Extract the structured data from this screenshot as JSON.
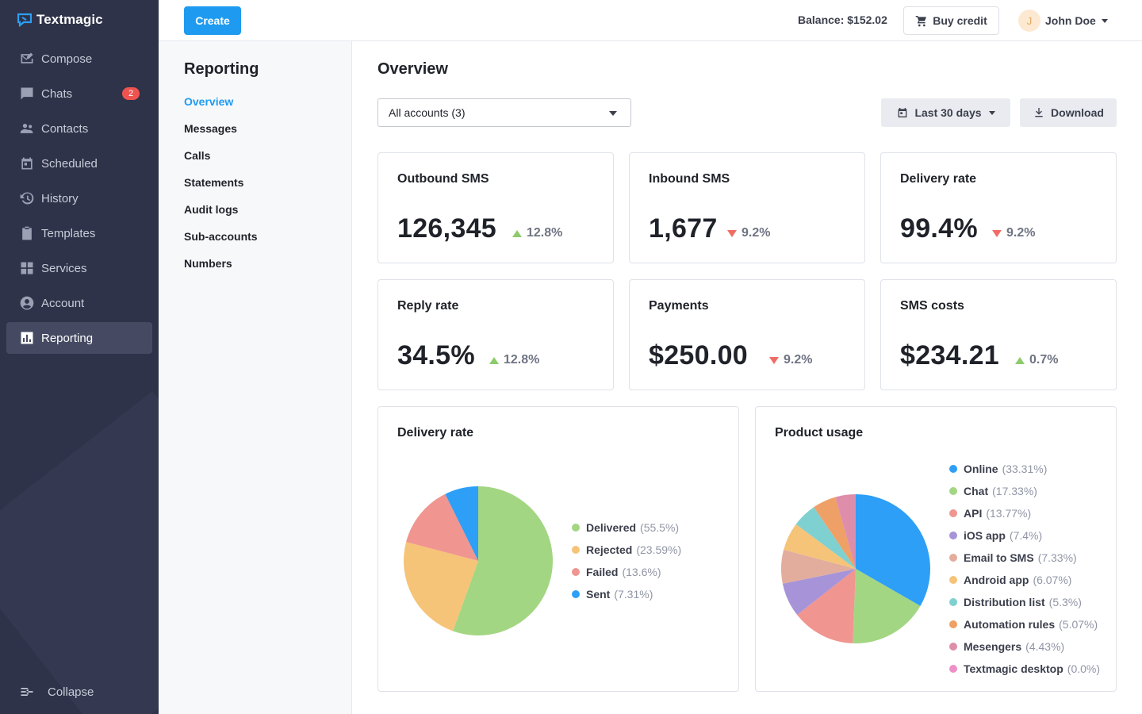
{
  "app": {
    "name": "Textmagic"
  },
  "sidebar": {
    "items": [
      {
        "label": "Compose",
        "icon": "compose-icon"
      },
      {
        "label": "Chats",
        "icon": "chat-icon",
        "badge": "2"
      },
      {
        "label": "Contacts",
        "icon": "contacts-icon"
      },
      {
        "label": "Scheduled",
        "icon": "calendar-icon"
      },
      {
        "label": "History",
        "icon": "history-icon"
      },
      {
        "label": "Templates",
        "icon": "clipboard-icon"
      },
      {
        "label": "Services",
        "icon": "grid-icon"
      },
      {
        "label": "Account",
        "icon": "account-icon"
      },
      {
        "label": "Reporting",
        "icon": "bar-chart-icon",
        "active": true
      }
    ],
    "collapse_label": "Collapse"
  },
  "topbar": {
    "create_label": "Create",
    "balance": "Balance: $152.02",
    "buy_credit_label": "Buy credit",
    "user_initial": "J",
    "user_name": "John Doe"
  },
  "subnav": {
    "title": "Reporting",
    "items": [
      "Overview",
      "Messages",
      "Calls",
      "Statements",
      "Audit logs",
      "Sub-accounts",
      "Numbers"
    ],
    "active": "Overview"
  },
  "main": {
    "title": "Overview",
    "account_select": "All accounts (3)",
    "date_range_label": "Last 30 days",
    "download_label": "Download"
  },
  "stats": [
    {
      "title": "Outbound SMS",
      "value": "126,345",
      "trend": "12.8%",
      "direction": "up"
    },
    {
      "title": "Inbound SMS",
      "value": "1,677",
      "trend": "9.2%",
      "direction": "down"
    },
    {
      "title": "Delivery rate",
      "value": "99.4%",
      "trend": "9.2%",
      "direction": "down"
    },
    {
      "title": "Reply rate",
      "value": "34.5%",
      "trend": "12.8%",
      "direction": "up"
    },
    {
      "title": "Payments",
      "value": "$250.00",
      "trend": "9.2%",
      "direction": "down"
    },
    {
      "title": "SMS costs",
      "value": "$234.21",
      "trend": "0.7%",
      "direction": "up"
    }
  ],
  "colors": {
    "accent": "#1e9bf0",
    "trend_up": "#8ccb6b",
    "trend_down": "#ee6d66"
  },
  "chart_data": [
    {
      "type": "pie",
      "title": "Delivery rate",
      "labels": [
        "Delivered",
        "Rejected",
        "Failed",
        "Sent"
      ],
      "display": [
        "(55.5%)",
        "(23.59%)",
        "(13.6%)",
        "(7.31%)"
      ],
      "values": [
        55.5,
        23.59,
        13.6,
        7.31
      ],
      "colors": [
        "#a3d683",
        "#f5c478",
        "#f09590",
        "#2d9ff6"
      ],
      "legend": "right"
    },
    {
      "type": "pie",
      "title": "Product usage",
      "labels": [
        "Online",
        "Chat",
        "API",
        "iOS app",
        "Email to SMS",
        "Android app",
        "Distribution list",
        "Automation rules",
        "Mesengers",
        "Textmagic desktop"
      ],
      "display": [
        "(33.31%)",
        "(17.33%)",
        "(13.77%)",
        "(7.4%)",
        "(7.33%)",
        "(6.07%)",
        "(5.3%)",
        "(5.07%)",
        "(4.43%)",
        "(0.0%)"
      ],
      "values": [
        33.31,
        17.33,
        13.77,
        7.4,
        7.33,
        6.07,
        5.3,
        5.07,
        4.43,
        0.0
      ],
      "colors": [
        "#2d9ff6",
        "#a3d683",
        "#f09590",
        "#a794d8",
        "#e2ad9d",
        "#f5c478",
        "#7fd0d0",
        "#eea066",
        "#de8eaa",
        "#ee8fc8"
      ],
      "legend": "right"
    }
  ]
}
